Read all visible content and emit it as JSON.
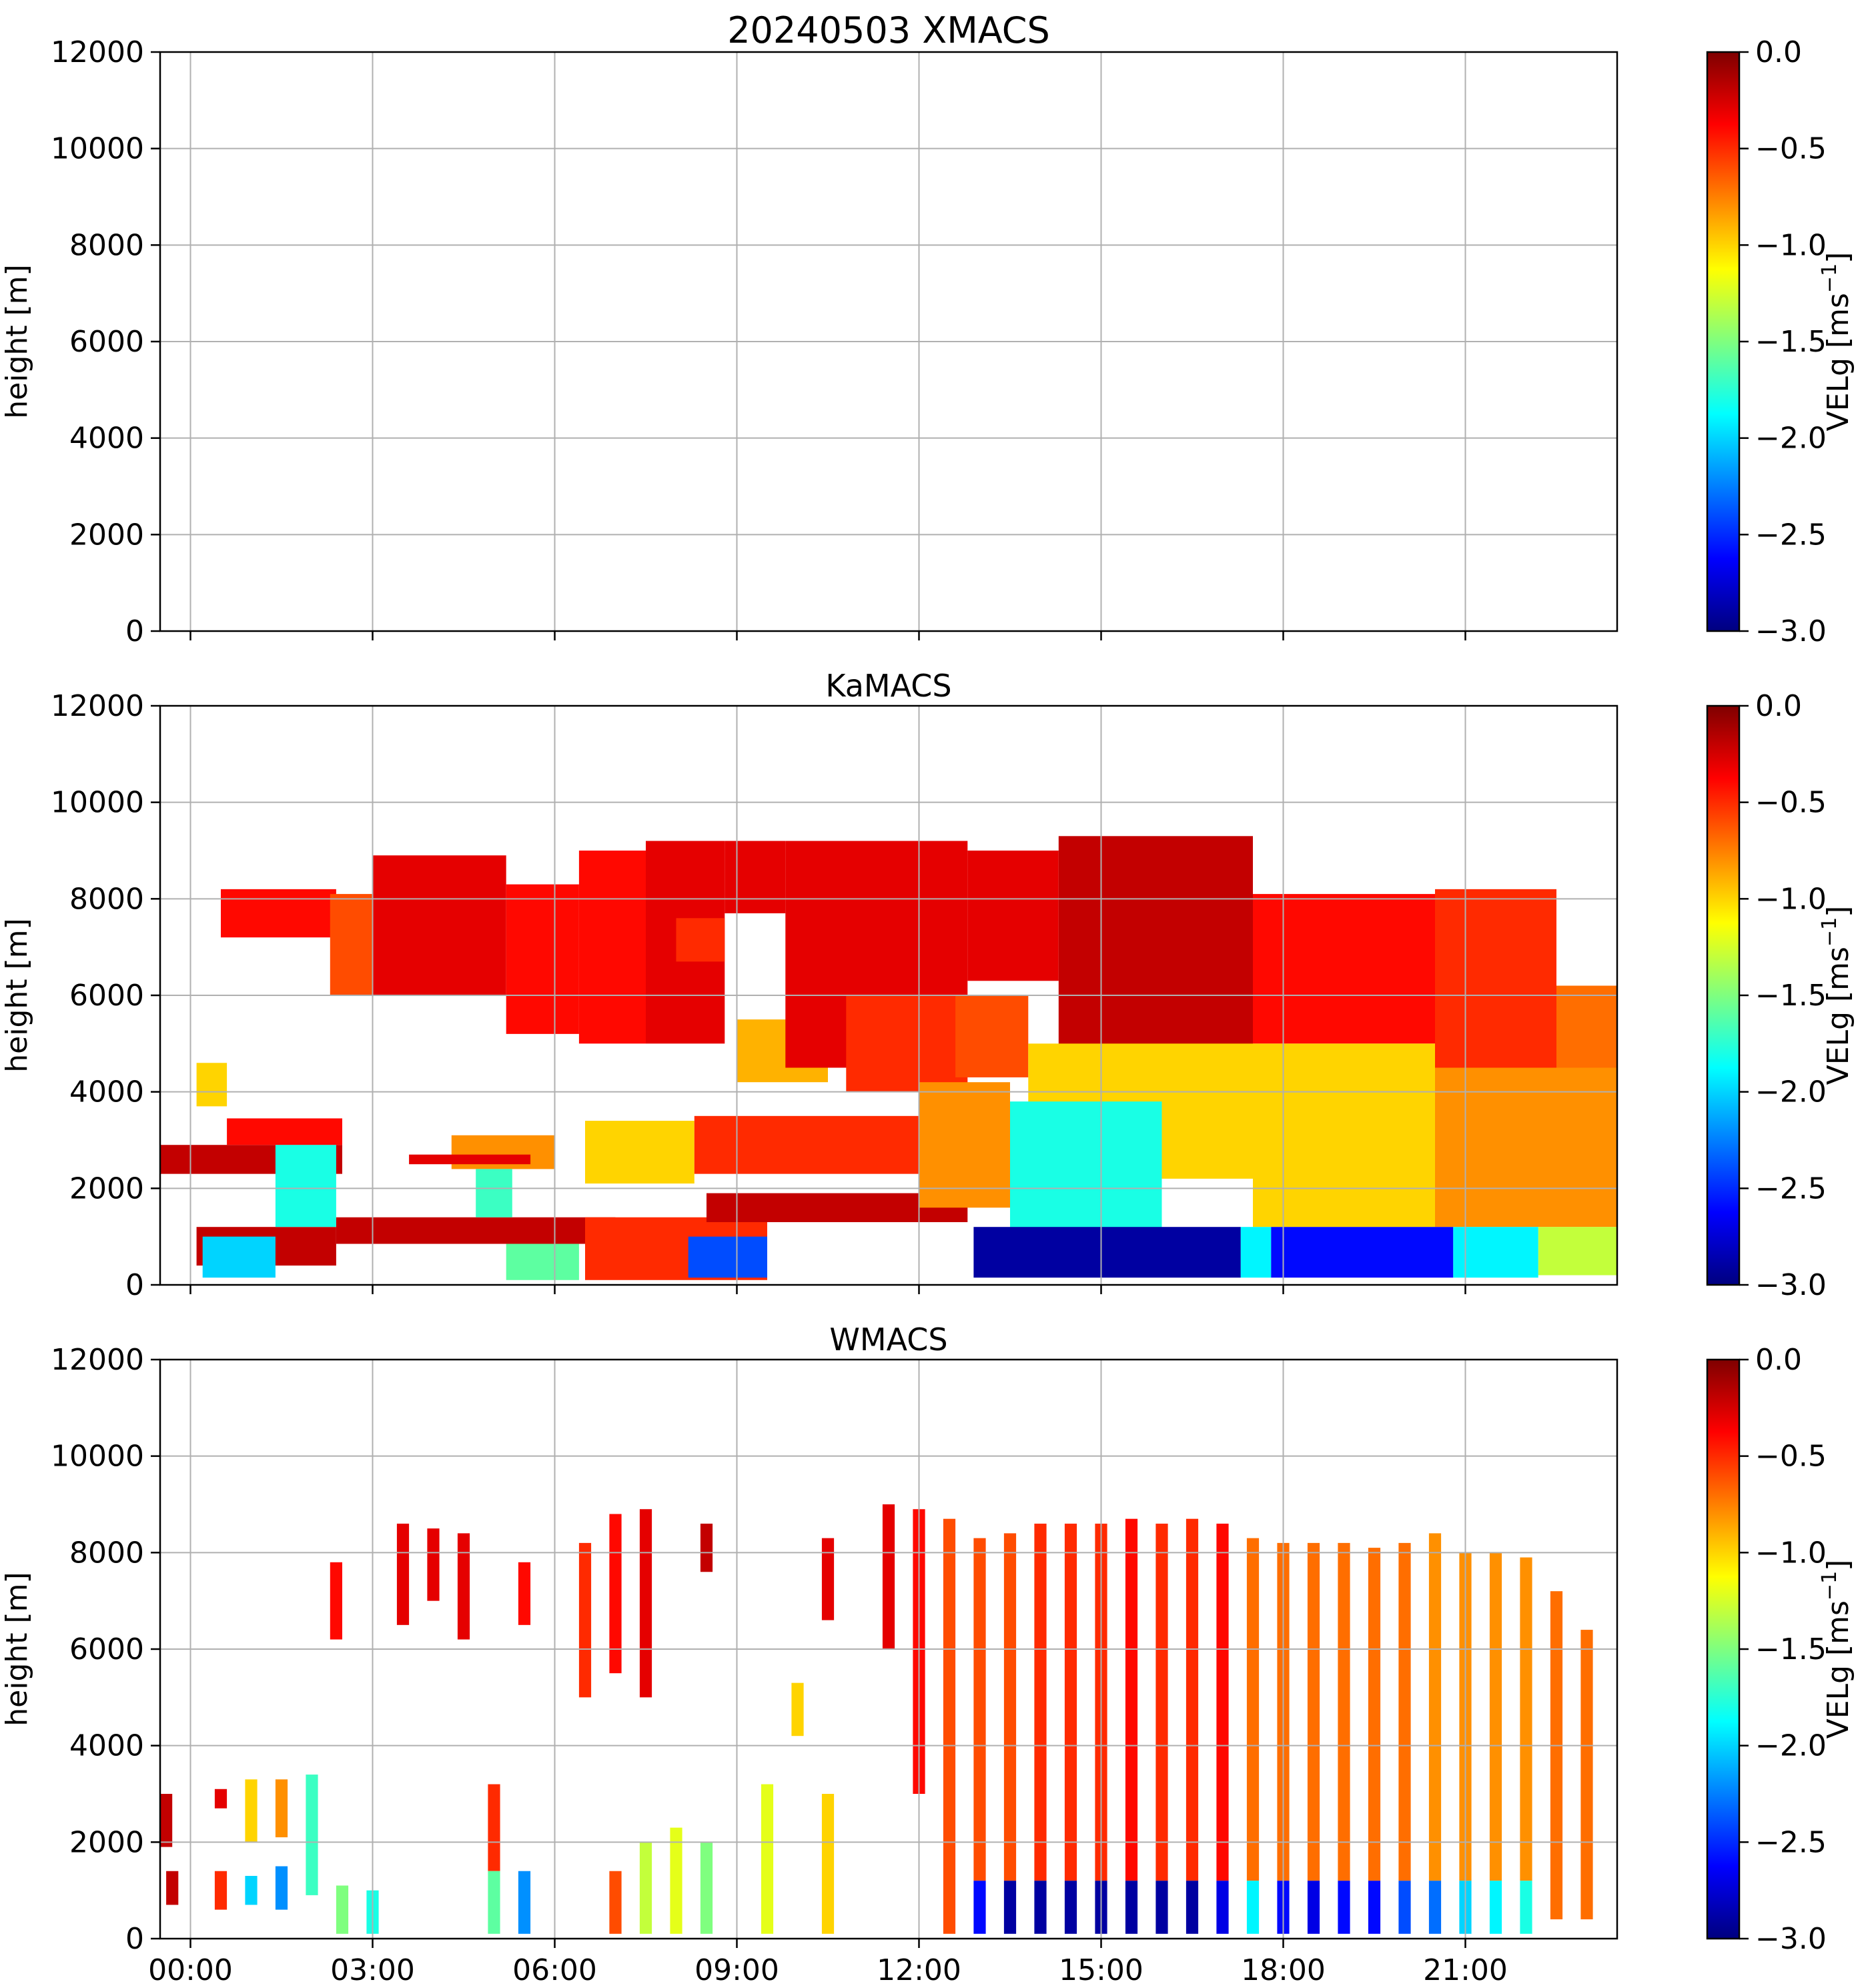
{
  "figure_title": "20240503 XMACS",
  "colors": {
    "jet": [
      "#00007f",
      "#0000ff",
      "#007fff",
      "#00ffff",
      "#7fff7f",
      "#ffff00",
      "#ff7f00",
      "#ff0000",
      "#7f0000"
    ]
  },
  "chart_data": [
    {
      "type": "heatmap",
      "title": "20240503 XMACS",
      "xlabel": "",
      "ylabel": "height [m]",
      "ylim": [
        0,
        12000
      ],
      "yticks": [
        "0",
        "2000",
        "4000",
        "6000",
        "8000",
        "10000",
        "12000"
      ],
      "xlim": [
        -0.5,
        23.5
      ],
      "xticks_hours": [
        0,
        3,
        6,
        9,
        12,
        15,
        18,
        21
      ],
      "xtick_labels": [],
      "grid": true,
      "colorbar": {
        "label": "VELg [ms",
        "label_sup": "−1",
        "label_end": "]",
        "range": [
          -3.0,
          0.0
        ],
        "tick_labels": [
          "0.0",
          "−0.5",
          "−1.0",
          "−1.5",
          "−2.0",
          "−2.5",
          "−3.0"
        ]
      },
      "cells": []
    },
    {
      "type": "heatmap",
      "title": "KaMACS",
      "xlabel": "",
      "ylabel": "height [m]",
      "ylim": [
        0,
        12000
      ],
      "yticks": [
        "0",
        "2000",
        "4000",
        "6000",
        "8000",
        "10000",
        "12000"
      ],
      "xlim": [
        -0.5,
        23.5
      ],
      "xticks_hours": [
        0,
        3,
        6,
        9,
        12,
        15,
        18,
        21
      ],
      "xtick_labels": [],
      "grid": true,
      "colorbar": {
        "label": "VELg [ms",
        "label_sup": "−1",
        "label_end": "]",
        "range": [
          -3.0,
          0.0
        ],
        "tick_labels": [
          "0.0",
          "−0.5",
          "−1.0",
          "−1.5",
          "−2.0",
          "−2.5",
          "−3.0"
        ]
      },
      "cells": [
        {
          "x0": -0.5,
          "x1": 2.5,
          "y0": 2300,
          "y1": 2900,
          "v": -0.2
        },
        {
          "x0": 0.6,
          "x1": 2.5,
          "y0": 2900,
          "y1": 3450,
          "v": -0.4
        },
        {
          "x0": 0.1,
          "x1": 2.4,
          "y0": 400,
          "y1": 1200,
          "v": -0.2
        },
        {
          "x0": 0.2,
          "x1": 1.4,
          "y0": 150,
          "y1": 1000,
          "v": -2.0
        },
        {
          "x0": 1.4,
          "x1": 2.4,
          "y0": 1200,
          "y1": 2900,
          "v": -1.8
        },
        {
          "x0": 2.4,
          "x1": 7.0,
          "y0": 850,
          "y1": 1400,
          "v": -0.2
        },
        {
          "x0": 5.2,
          "x1": 6.4,
          "y0": 100,
          "y1": 850,
          "v": -1.6
        },
        {
          "x0": 6.5,
          "x1": 9.5,
          "y0": 100,
          "y1": 1400,
          "v": -0.5
        },
        {
          "x0": 8.2,
          "x1": 9.5,
          "y0": 150,
          "y1": 1000,
          "v": -2.4
        },
        {
          "x0": 4.3,
          "x1": 6.0,
          "y0": 2400,
          "y1": 3100,
          "v": -0.8
        },
        {
          "x0": 4.7,
          "x1": 5.3,
          "y0": 1400,
          "y1": 2400,
          "v": -1.7
        },
        {
          "x0": 3.6,
          "x1": 5.6,
          "y0": 2500,
          "y1": 2700,
          "v": -0.3
        },
        {
          "x0": 6.5,
          "x1": 8.3,
          "y0": 2100,
          "y1": 3400,
          "v": -1.0
        },
        {
          "x0": 8.3,
          "x1": 12.0,
          "y0": 2300,
          "y1": 3500,
          "v": -0.5
        },
        {
          "x0": 8.5,
          "x1": 12.8,
          "y0": 1300,
          "y1": 1900,
          "v": -0.2
        },
        {
          "x0": 0.1,
          "x1": 0.6,
          "y0": 3700,
          "y1": 4600,
          "v": -1.0
        },
        {
          "x0": 0.5,
          "x1": 2.4,
          "y0": 7200,
          "y1": 8200,
          "v": -0.4
        },
        {
          "x0": 2.3,
          "x1": 3.6,
          "y0": 6000,
          "y1": 8100,
          "v": -0.6
        },
        {
          "x0": 3.0,
          "x1": 5.2,
          "y0": 6000,
          "y1": 8900,
          "v": -0.3
        },
        {
          "x0": 5.2,
          "x1": 6.4,
          "y0": 5200,
          "y1": 8300,
          "v": -0.4
        },
        {
          "x0": 6.4,
          "x1": 7.5,
          "y0": 5000,
          "y1": 9000,
          "v": -0.4
        },
        {
          "x0": 7.5,
          "x1": 8.8,
          "y0": 5000,
          "y1": 9200,
          "v": -0.3
        },
        {
          "x0": 8.0,
          "x1": 8.8,
          "y0": 6700,
          "y1": 7600,
          "v": -0.5
        },
        {
          "x0": 8.8,
          "x1": 9.8,
          "y0": 7700,
          "y1": 9200,
          "v": -0.3
        },
        {
          "x0": 9.0,
          "x1": 10.5,
          "y0": 4200,
          "y1": 5500,
          "v": -0.9
        },
        {
          "x0": 9.8,
          "x1": 12.8,
          "y0": 4500,
          "y1": 9200,
          "v": -0.3
        },
        {
          "x0": 10.8,
          "x1": 12.8,
          "y0": 4000,
          "y1": 6000,
          "v": -0.5
        },
        {
          "x0": 12.0,
          "x1": 13.5,
          "y0": 1600,
          "y1": 4200,
          "v": -0.8
        },
        {
          "x0": 12.8,
          "x1": 14.3,
          "y0": 6300,
          "y1": 9000,
          "v": -0.3
        },
        {
          "x0": 14.3,
          "x1": 17.5,
          "y0": 4500,
          "y1": 9300,
          "v": -0.2
        },
        {
          "x0": 12.6,
          "x1": 13.8,
          "y0": 4300,
          "y1": 6000,
          "v": -0.6
        },
        {
          "x0": 13.8,
          "x1": 17.5,
          "y0": 2200,
          "y1": 5000,
          "v": -1.0
        },
        {
          "x0": 13.5,
          "x1": 16.0,
          "y0": 1100,
          "y1": 3800,
          "v": -1.8
        },
        {
          "x0": 17.5,
          "x1": 20.5,
          "y0": 5000,
          "y1": 8100,
          "v": -0.4
        },
        {
          "x0": 17.5,
          "x1": 20.5,
          "y0": 1200,
          "y1": 5000,
          "v": -1.0
        },
        {
          "x0": 20.5,
          "x1": 22.5,
          "y0": 4500,
          "y1": 8200,
          "v": -0.5
        },
        {
          "x0": 20.5,
          "x1": 23.5,
          "y0": 1200,
          "y1": 4500,
          "v": -0.8
        },
        {
          "x0": 22.5,
          "x1": 23.5,
          "y0": 4500,
          "y1": 6200,
          "v": -0.7
        },
        {
          "x0": 22.2,
          "x1": 23.5,
          "y0": 200,
          "y1": 1200,
          "v": -1.3
        },
        {
          "x0": 12.9,
          "x1": 17.3,
          "y0": 150,
          "y1": 1200,
          "v": -2.9
        },
        {
          "x0": 17.3,
          "x1": 17.8,
          "y0": 150,
          "y1": 1200,
          "v": -1.9
        },
        {
          "x0": 17.8,
          "x1": 20.8,
          "y0": 150,
          "y1": 1200,
          "v": -2.6
        },
        {
          "x0": 20.8,
          "x1": 22.2,
          "y0": 150,
          "y1": 1200,
          "v": -1.9
        }
      ]
    },
    {
      "type": "heatmap",
      "title": "WMACS",
      "xlabel": "",
      "ylabel": "height [m]",
      "ylim": [
        0,
        12000
      ],
      "yticks": [
        "0",
        "2000",
        "4000",
        "6000",
        "8000",
        "10000",
        "12000"
      ],
      "xlim": [
        -0.5,
        23.5
      ],
      "xticks_hours": [
        0,
        3,
        6,
        9,
        12,
        15,
        18,
        21
      ],
      "xtick_labels": [
        "00:00",
        "03:00",
        "06:00",
        "09:00",
        "12:00",
        "15:00",
        "18:00",
        "21:00"
      ],
      "grid": true,
      "colorbar": {
        "label": "VELg [ms",
        "label_sup": "−1",
        "label_end": "]",
        "range": [
          -3.0,
          0.0
        ],
        "tick_labels": [
          "0.0",
          "−0.5",
          "−1.0",
          "−1.5",
          "−2.0",
          "−2.5",
          "−3.0"
        ]
      },
      "cells": [
        {
          "x0": -0.5,
          "x1": -0.3,
          "y0": 1900,
          "y1": 3000,
          "v": -0.2
        },
        {
          "x0": 0.4,
          "x1": 0.6,
          "y0": 2700,
          "y1": 3100,
          "v": -0.3
        },
        {
          "x0": 0.9,
          "x1": 1.1,
          "y0": 2000,
          "y1": 3300,
          "v": -1.0
        },
        {
          "x0": 1.4,
          "x1": 1.6,
          "y0": 2100,
          "y1": 3300,
          "v": -0.8
        },
        {
          "x0": 1.9,
          "x1": 2.1,
          "y0": 900,
          "y1": 3400,
          "v": -1.7
        },
        {
          "x0": 2.3,
          "x1": 2.5,
          "y0": 6200,
          "y1": 7800,
          "v": -0.4
        },
        {
          "x0": 3.4,
          "x1": 3.6,
          "y0": 6500,
          "y1": 8600,
          "v": -0.3
        },
        {
          "x0": 3.9,
          "x1": 4.1,
          "y0": 7000,
          "y1": 8500,
          "v": -0.3
        },
        {
          "x0": 4.4,
          "x1": 4.6,
          "y0": 6200,
          "y1": 8400,
          "v": -0.3
        },
        {
          "x0": 4.9,
          "x1": 5.1,
          "y0": 1400,
          "y1": 3200,
          "v": -0.5
        },
        {
          "x0": 5.4,
          "x1": 5.6,
          "y0": 6500,
          "y1": 7800,
          "v": -0.4
        },
        {
          "x0": 6.4,
          "x1": 6.6,
          "y0": 5000,
          "y1": 8200,
          "v": -0.5
        },
        {
          "x0": 6.9,
          "x1": 7.1,
          "y0": 5500,
          "y1": 8800,
          "v": -0.4
        },
        {
          "x0": 7.4,
          "x1": 7.6,
          "y0": 5000,
          "y1": 8900,
          "v": -0.3
        },
        {
          "x0": 8.4,
          "x1": 8.6,
          "y0": 7600,
          "y1": 8600,
          "v": -0.2
        },
        {
          "x0": 9.9,
          "x1": 10.1,
          "y0": 4200,
          "y1": 5300,
          "v": -1.0
        },
        {
          "x0": 10.4,
          "x1": 10.6,
          "y0": 6600,
          "y1": 8300,
          "v": -0.3
        },
        {
          "x0": 11.4,
          "x1": 11.6,
          "y0": 6000,
          "y1": 9000,
          "v": -0.3
        },
        {
          "x0": 11.9,
          "x1": 12.1,
          "y0": 3000,
          "y1": 8900,
          "v": -0.4
        },
        {
          "x0": -0.4,
          "x1": -0.2,
          "y0": 700,
          "y1": 1400,
          "v": -0.2
        },
        {
          "x0": 0.4,
          "x1": 0.6,
          "y0": 600,
          "y1": 1400,
          "v": -0.5
        },
        {
          "x0": 0.9,
          "x1": 1.1,
          "y0": 700,
          "y1": 1300,
          "v": -2.0
        },
        {
          "x0": 1.4,
          "x1": 1.6,
          "y0": 600,
          "y1": 1500,
          "v": -2.2
        },
        {
          "x0": 2.4,
          "x1": 2.6,
          "y0": 100,
          "y1": 1100,
          "v": -1.5
        },
        {
          "x0": 2.9,
          "x1": 3.1,
          "y0": 100,
          "y1": 1000,
          "v": -1.8
        },
        {
          "x0": 4.9,
          "x1": 5.1,
          "y0": 100,
          "y1": 1400,
          "v": -1.6
        },
        {
          "x0": 5.4,
          "x1": 5.6,
          "y0": 100,
          "y1": 1400,
          "v": -2.2
        },
        {
          "x0": 6.9,
          "x1": 7.1,
          "y0": 100,
          "y1": 1400,
          "v": -0.6
        },
        {
          "x0": 7.4,
          "x1": 7.6,
          "y0": 100,
          "y1": 2000,
          "v": -1.3
        },
        {
          "x0": 7.9,
          "x1": 8.1,
          "y0": 100,
          "y1": 2300,
          "v": -1.2
        },
        {
          "x0": 8.4,
          "x1": 8.6,
          "y0": 100,
          "y1": 2000,
          "v": -1.5
        },
        {
          "x0": 9.4,
          "x1": 9.6,
          "y0": 100,
          "y1": 3200,
          "v": -1.2
        },
        {
          "x0": 10.4,
          "x1": 10.6,
          "y0": 100,
          "y1": 3000,
          "v": -1.0
        },
        {
          "x0": 12.4,
          "x1": 12.6,
          "y0": 100,
          "y1": 8700,
          "v": -0.6
        },
        {
          "x0": 12.9,
          "x1": 13.1,
          "y0": 1200,
          "y1": 8300,
          "v": -0.6
        },
        {
          "x0": 12.9,
          "x1": 13.1,
          "y0": 100,
          "y1": 1200,
          "v": -2.6
        },
        {
          "x0": 13.4,
          "x1": 13.6,
          "y0": 1200,
          "y1": 8400,
          "v": -0.6
        },
        {
          "x0": 13.4,
          "x1": 13.6,
          "y0": 100,
          "y1": 1200,
          "v": -2.9
        },
        {
          "x0": 13.9,
          "x1": 14.1,
          "y0": 1200,
          "y1": 8600,
          "v": -0.5
        },
        {
          "x0": 13.9,
          "x1": 14.1,
          "y0": 100,
          "y1": 1200,
          "v": -2.9
        },
        {
          "x0": 14.4,
          "x1": 14.6,
          "y0": 1200,
          "y1": 8600,
          "v": -0.5
        },
        {
          "x0": 14.4,
          "x1": 14.6,
          "y0": 100,
          "y1": 1200,
          "v": -2.9
        },
        {
          "x0": 14.9,
          "x1": 15.1,
          "y0": 1200,
          "y1": 8600,
          "v": -0.5
        },
        {
          "x0": 14.9,
          "x1": 15.1,
          "y0": 100,
          "y1": 1200,
          "v": -2.9
        },
        {
          "x0": 15.4,
          "x1": 15.6,
          "y0": 1200,
          "y1": 8700,
          "v": -0.4
        },
        {
          "x0": 15.4,
          "x1": 15.6,
          "y0": 100,
          "y1": 1200,
          "v": -2.9
        },
        {
          "x0": 15.9,
          "x1": 16.1,
          "y0": 1200,
          "y1": 8600,
          "v": -0.5
        },
        {
          "x0": 15.9,
          "x1": 16.1,
          "y0": 100,
          "y1": 1200,
          "v": -2.9
        },
        {
          "x0": 16.4,
          "x1": 16.6,
          "y0": 1200,
          "y1": 8700,
          "v": -0.5
        },
        {
          "x0": 16.4,
          "x1": 16.6,
          "y0": 100,
          "y1": 1200,
          "v": -2.9
        },
        {
          "x0": 16.9,
          "x1": 17.1,
          "y0": 1200,
          "y1": 8600,
          "v": -0.4
        },
        {
          "x0": 16.9,
          "x1": 17.1,
          "y0": 100,
          "y1": 1200,
          "v": -2.7
        },
        {
          "x0": 17.4,
          "x1": 17.6,
          "y0": 1200,
          "y1": 8300,
          "v": -0.7
        },
        {
          "x0": 17.4,
          "x1": 17.6,
          "y0": 100,
          "y1": 1200,
          "v": -1.9
        },
        {
          "x0": 17.9,
          "x1": 18.1,
          "y0": 1200,
          "y1": 8200,
          "v": -0.7
        },
        {
          "x0": 17.9,
          "x1": 18.1,
          "y0": 100,
          "y1": 1200,
          "v": -2.6
        },
        {
          "x0": 18.4,
          "x1": 18.6,
          "y0": 1200,
          "y1": 8200,
          "v": -0.7
        },
        {
          "x0": 18.4,
          "x1": 18.6,
          "y0": 100,
          "y1": 1200,
          "v": -2.7
        },
        {
          "x0": 18.9,
          "x1": 19.1,
          "y0": 1200,
          "y1": 8200,
          "v": -0.7
        },
        {
          "x0": 18.9,
          "x1": 19.1,
          "y0": 100,
          "y1": 1200,
          "v": -2.6
        },
        {
          "x0": 19.4,
          "x1": 19.6,
          "y0": 1200,
          "y1": 8100,
          "v": -0.7
        },
        {
          "x0": 19.4,
          "x1": 19.6,
          "y0": 100,
          "y1": 1200,
          "v": -2.6
        },
        {
          "x0": 19.9,
          "x1": 20.1,
          "y0": 1200,
          "y1": 8200,
          "v": -0.7
        },
        {
          "x0": 19.9,
          "x1": 20.1,
          "y0": 100,
          "y1": 1200,
          "v": -2.4
        },
        {
          "x0": 20.4,
          "x1": 20.6,
          "y0": 1200,
          "y1": 8400,
          "v": -0.8
        },
        {
          "x0": 20.4,
          "x1": 20.6,
          "y0": 100,
          "y1": 1200,
          "v": -2.3
        },
        {
          "x0": 20.9,
          "x1": 21.1,
          "y0": 1200,
          "y1": 8000,
          "v": -0.8
        },
        {
          "x0": 20.9,
          "x1": 21.1,
          "y0": 100,
          "y1": 1200,
          "v": -2.0
        },
        {
          "x0": 21.4,
          "x1": 21.6,
          "y0": 1200,
          "y1": 8000,
          "v": -0.8
        },
        {
          "x0": 21.4,
          "x1": 21.6,
          "y0": 100,
          "y1": 1200,
          "v": -1.9
        },
        {
          "x0": 21.9,
          "x1": 22.1,
          "y0": 1200,
          "y1": 7900,
          "v": -0.8
        },
        {
          "x0": 21.9,
          "x1": 22.1,
          "y0": 100,
          "y1": 1200,
          "v": -1.8
        },
        {
          "x0": 22.4,
          "x1": 22.6,
          "y0": 400,
          "y1": 7200,
          "v": -0.7
        },
        {
          "x0": 22.9,
          "x1": 23.1,
          "y0": 400,
          "y1": 6400,
          "v": -0.7
        }
      ]
    }
  ]
}
